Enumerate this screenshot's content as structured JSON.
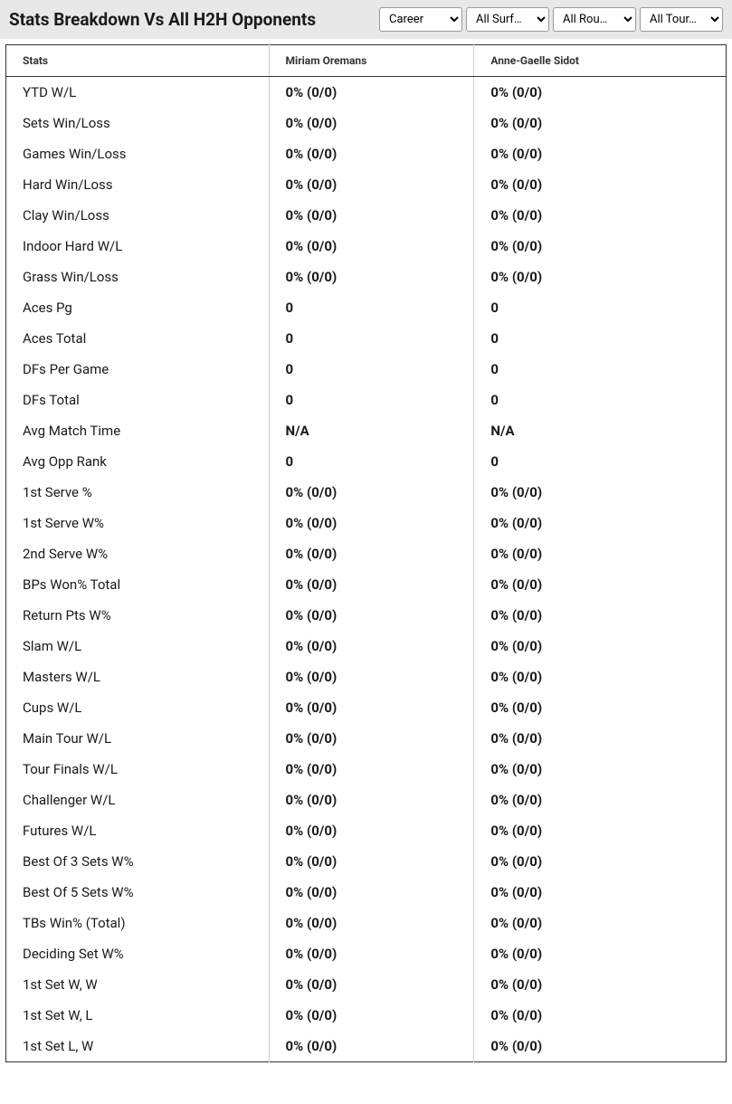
{
  "header": {
    "title": "Stats Breakdown Vs All H2H Opponents",
    "filters": {
      "career": "Career",
      "surface": "All Surf…",
      "round": "All Rou…",
      "tour": "All Tour…"
    }
  },
  "table": {
    "columns": {
      "stats": "Stats",
      "player1": "Miriam Oremans",
      "player2": "Anne-Gaelle Sidot"
    },
    "rows": [
      {
        "label": "YTD W/L",
        "v1": "0% (0/0)",
        "v2": "0% (0/0)"
      },
      {
        "label": "Sets Win/Loss",
        "v1": "0% (0/0)",
        "v2": "0% (0/0)"
      },
      {
        "label": "Games Win/Loss",
        "v1": "0% (0/0)",
        "v2": "0% (0/0)"
      },
      {
        "label": "Hard Win/Loss",
        "v1": "0% (0/0)",
        "v2": "0% (0/0)"
      },
      {
        "label": "Clay Win/Loss",
        "v1": "0% (0/0)",
        "v2": "0% (0/0)"
      },
      {
        "label": "Indoor Hard W/L",
        "v1": "0% (0/0)",
        "v2": "0% (0/0)"
      },
      {
        "label": "Grass Win/Loss",
        "v1": "0% (0/0)",
        "v2": "0% (0/0)"
      },
      {
        "label": "Aces Pg",
        "v1": "0",
        "v2": "0"
      },
      {
        "label": "Aces Total",
        "v1": "0",
        "v2": "0"
      },
      {
        "label": "DFs Per Game",
        "v1": "0",
        "v2": "0"
      },
      {
        "label": "DFs Total",
        "v1": "0",
        "v2": "0"
      },
      {
        "label": "Avg Match Time",
        "v1": "N/A",
        "v2": "N/A"
      },
      {
        "label": "Avg Opp Rank",
        "v1": "0",
        "v2": "0"
      },
      {
        "label": "1st Serve %",
        "v1": "0% (0/0)",
        "v2": "0% (0/0)"
      },
      {
        "label": "1st Serve W%",
        "v1": "0% (0/0)",
        "v2": "0% (0/0)"
      },
      {
        "label": "2nd Serve W%",
        "v1": "0% (0/0)",
        "v2": "0% (0/0)"
      },
      {
        "label": "BPs Won% Total",
        "v1": "0% (0/0)",
        "v2": "0% (0/0)"
      },
      {
        "label": "Return Pts W%",
        "v1": "0% (0/0)",
        "v2": "0% (0/0)"
      },
      {
        "label": "Slam W/L",
        "v1": "0% (0/0)",
        "v2": "0% (0/0)"
      },
      {
        "label": "Masters W/L",
        "v1": "0% (0/0)",
        "v2": "0% (0/0)"
      },
      {
        "label": "Cups W/L",
        "v1": "0% (0/0)",
        "v2": "0% (0/0)"
      },
      {
        "label": "Main Tour W/L",
        "v1": "0% (0/0)",
        "v2": "0% (0/0)"
      },
      {
        "label": "Tour Finals W/L",
        "v1": "0% (0/0)",
        "v2": "0% (0/0)"
      },
      {
        "label": "Challenger W/L",
        "v1": "0% (0/0)",
        "v2": "0% (0/0)"
      },
      {
        "label": "Futures W/L",
        "v1": "0% (0/0)",
        "v2": "0% (0/0)"
      },
      {
        "label": "Best Of 3 Sets W%",
        "v1": "0% (0/0)",
        "v2": "0% (0/0)"
      },
      {
        "label": "Best Of 5 Sets W%",
        "v1": "0% (0/0)",
        "v2": "0% (0/0)"
      },
      {
        "label": "TBs Win% (Total)",
        "v1": "0% (0/0)",
        "v2": "0% (0/0)"
      },
      {
        "label": "Deciding Set W%",
        "v1": "0% (0/0)",
        "v2": "0% (0/0)"
      },
      {
        "label": "1st Set W, W",
        "v1": "0% (0/0)",
        "v2": "0% (0/0)"
      },
      {
        "label": "1st Set W, L",
        "v1": "0% (0/0)",
        "v2": "0% (0/0)"
      },
      {
        "label": "1st Set L, W",
        "v1": "0% (0/0)",
        "v2": "0% (0/0)"
      }
    ]
  },
  "styling": {
    "header_bg": "#e8e8e8",
    "title_fontsize": 19,
    "title_color": "#1a1a1a",
    "table_border_color": "#333333",
    "cell_divider_color": "#d0d0d0",
    "body_fontsize": 15,
    "header_fontsize": 12,
    "text_color": "#1a1a1a",
    "value_fontweight": 700
  }
}
